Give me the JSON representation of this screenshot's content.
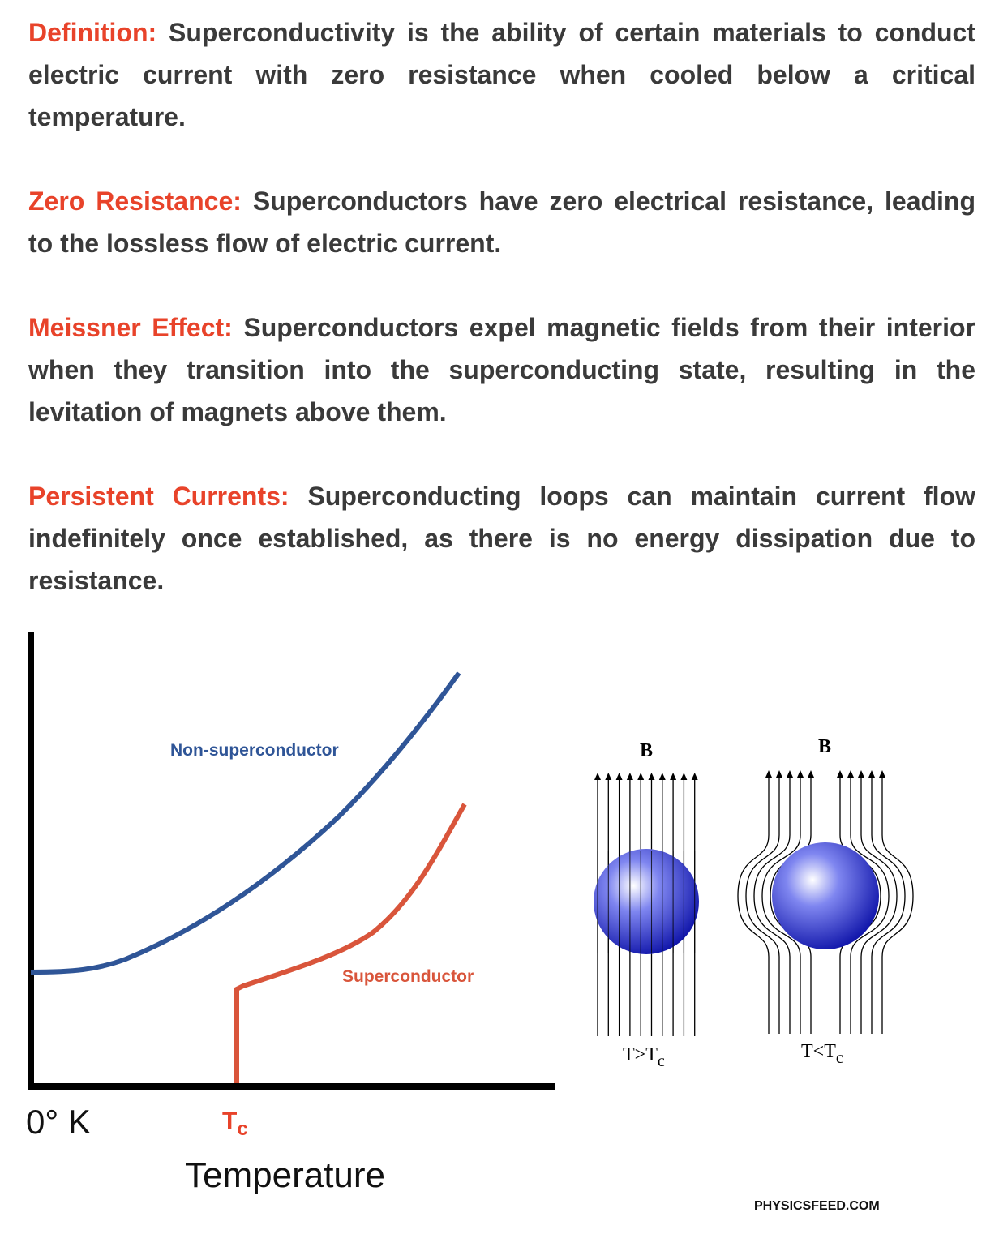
{
  "paragraphs": [
    {
      "term": "Definition:",
      "text": "Superconductivity is the ability of certain materials to conduct electric current with zero resistance when cooled below a critical temperature."
    },
    {
      "term": "Zero Resistance:",
      "text": "Superconductors have zero electrical resistance, leading to the lossless flow of electric current."
    },
    {
      "term": "Meissner Effect:",
      "text": "Superconductors expel magnetic fields from their interior when they transition into the superconducting state, resulting in the levitation of magnets above them."
    },
    {
      "term": "Persistent Currents:",
      "text": "Superconducting loops can maintain current flow indefinitely once established, as there is no energy dissipation due to resistance."
    }
  ],
  "diagram": {
    "graph": {
      "curve_labels": [
        "Non-superconductor",
        "Superconductor"
      ],
      "origin_label": "0° K",
      "tc_label": {
        "symbol": "T",
        "subscript": "c"
      },
      "axis_title": "Temperature"
    },
    "meissner": {
      "panels": [
        {
          "field_label": "B",
          "condition": "T>T",
          "subscript": "c"
        },
        {
          "field_label": "B",
          "condition": "T<T",
          "subscript": "c"
        }
      ]
    }
  },
  "footer": {
    "source": "PHYSICSFEED.COM"
  }
}
